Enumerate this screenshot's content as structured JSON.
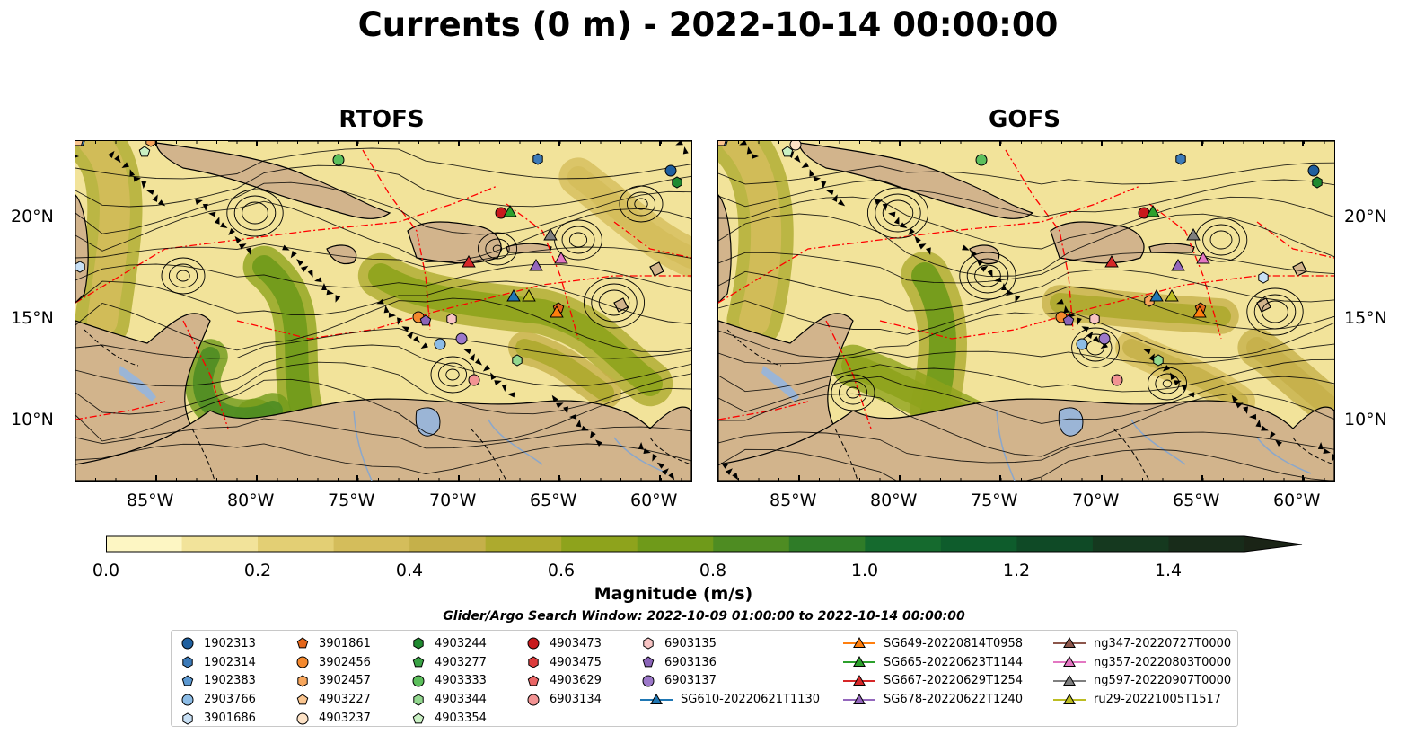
{
  "title": "Currents (0 m) - 2022-10-14 00:00:00",
  "panels": [
    {
      "id": "rtofs",
      "title": "RTOFS"
    },
    {
      "id": "gofs",
      "title": "GOFS"
    }
  ],
  "axes": {
    "lon_ticks": [
      "85°W",
      "80°W",
      "75°W",
      "70°W",
      "65°W",
      "60°W"
    ],
    "lat_ticks": [
      "20°N",
      "15°N",
      "10°N"
    ]
  },
  "colorbar": {
    "label": "Magnitude (m/s)",
    "ticks": [
      "0.0",
      "0.2",
      "0.4",
      "0.6",
      "0.8",
      "1.0",
      "1.2",
      "1.4"
    ],
    "range": [
      0.0,
      1.6
    ],
    "step": 0.1,
    "extend": "max",
    "colors": [
      "#fdf6c3",
      "#f2e39a",
      "#e3cf74",
      "#d4bd5b",
      "#c5b04a",
      "#adaa2e",
      "#8ea31c",
      "#6f9a1a",
      "#4e8c22",
      "#2f7c28",
      "#156a2e",
      "#0e5c2c",
      "#0f4a26",
      "#15391f",
      "#182c1a",
      "#1a2416"
    ]
  },
  "search_window": "Glider/Argo Search Window: 2022-10-09 01:00:00 to 2022-10-14 00:00:00",
  "legend": {
    "columns": [
      [
        {
          "label": "1902313",
          "marker": "circle",
          "color": "#1f5f9e"
        },
        {
          "label": "1902314",
          "marker": "hexagon",
          "color": "#3c7ab8"
        },
        {
          "label": "1902383",
          "marker": "pentagon",
          "color": "#5b98d1"
        },
        {
          "label": "2903766",
          "marker": "circle",
          "color": "#8cbce6"
        },
        {
          "label": "3901686",
          "marker": "hexagon",
          "color": "#c8e0f5"
        }
      ],
      [
        {
          "label": "3901861",
          "marker": "pentagon",
          "color": "#e4661a"
        },
        {
          "label": "3902456",
          "marker": "circle",
          "color": "#f4892e"
        },
        {
          "label": "3902457",
          "marker": "hexagon",
          "color": "#f7a65c"
        },
        {
          "label": "4903227",
          "marker": "pentagon",
          "color": "#fac58f"
        },
        {
          "label": "4903237",
          "marker": "circle",
          "color": "#fde2c6"
        }
      ],
      [
        {
          "label": "4903244",
          "marker": "hexagon",
          "color": "#1f8a30"
        },
        {
          "label": "4903277",
          "marker": "pentagon",
          "color": "#3aa345"
        },
        {
          "label": "4903333",
          "marker": "circle",
          "color": "#5cbf5c"
        },
        {
          "label": "4903344",
          "marker": "hexagon",
          "color": "#93d88f"
        },
        {
          "label": "4903354",
          "marker": "pentagon",
          "color": "#c9f0c3"
        }
      ],
      [
        {
          "label": "4903473",
          "marker": "circle",
          "color": "#c8191c"
        },
        {
          "label": "4903475",
          "marker": "hexagon",
          "color": "#dd3c3c"
        },
        {
          "label": "4903629",
          "marker": "pentagon",
          "color": "#ea6565"
        },
        {
          "label": "6903134",
          "marker": "circle",
          "color": "#f29393"
        }
      ],
      [
        {
          "label": "6903135",
          "marker": "hexagon",
          "color": "#f8c4c4"
        },
        {
          "label": "6903136",
          "marker": "pentagon",
          "color": "#8a64b8"
        },
        {
          "label": "6903137",
          "marker": "circle",
          "color": "#9c78c9"
        },
        {
          "label": "SG610-20220621T1130",
          "marker": "triangle-line",
          "color": "#1f77b4"
        }
      ],
      [
        {
          "label": "SG649-20220814T0958",
          "marker": "triangle-line",
          "color": "#ff7f0e"
        },
        {
          "label": "SG665-20220623T1144",
          "marker": "triangle-line",
          "color": "#2ca02c"
        },
        {
          "label": "SG667-20220629T1254",
          "marker": "triangle-line",
          "color": "#d62728"
        },
        {
          "label": "SG678-20220622T1240",
          "marker": "triangle-line",
          "color": "#9467bd"
        }
      ],
      [
        {
          "label": "ng347-20220727T0000",
          "marker": "triangle-line",
          "color": "#8c564b"
        },
        {
          "label": "ng357-20220803T0000",
          "marker": "triangle-line",
          "color": "#e377c2"
        },
        {
          "label": "ng597-20220907T0000",
          "marker": "triangle-line",
          "color": "#7f7f7f"
        },
        {
          "label": "ru29-20221005T1517",
          "marker": "triangle-line",
          "color": "#bcbd22"
        }
      ]
    ]
  },
  "map_colors": {
    "land": "#d2b48c",
    "water_inland": "#9bb5d6",
    "current_low": "#fdf6c3",
    "current_high": "#1b6b2a",
    "eez": "#ff0000"
  }
}
